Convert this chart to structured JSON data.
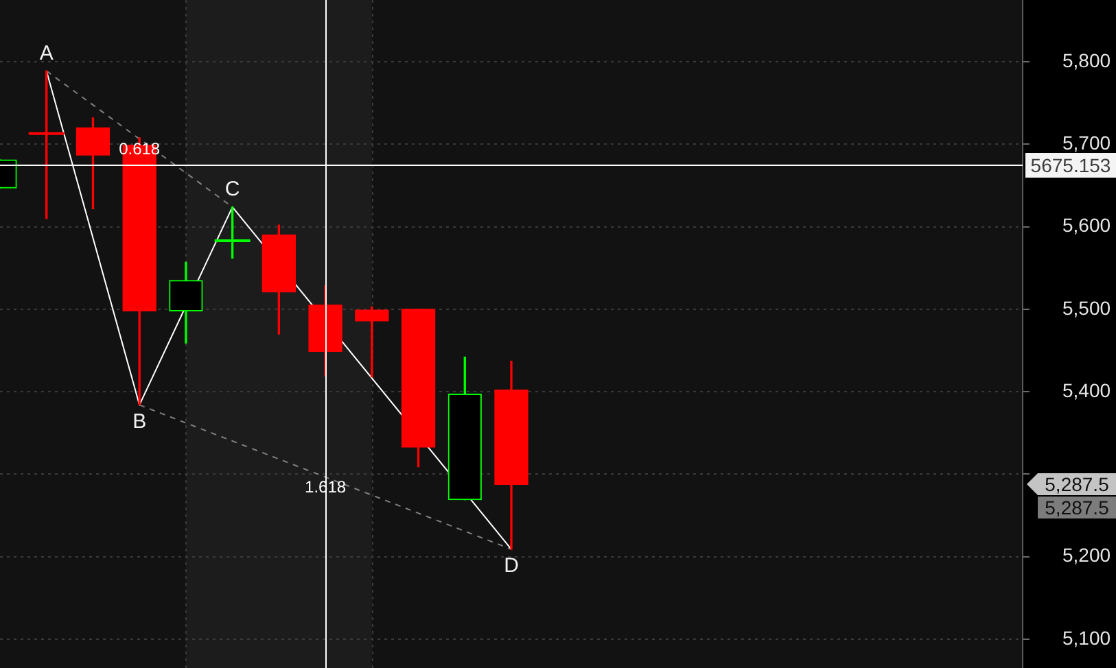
{
  "chart_data": {
    "type": "candlestick",
    "categories": [
      null,
      null,
      null,
      null,
      null,
      null,
      null,
      null,
      null,
      null,
      null,
      null,
      null,
      null,
      null,
      null,
      null,
      null,
      null,
      null,
      null,
      null,
      null
    ],
    "ohlc": [
      [
        5647,
        5681,
        5647,
        5681
      ],
      [
        5713,
        5789,
        5610,
        5713
      ],
      [
        5720,
        5732,
        5622,
        5687
      ],
      [
        5699,
        5708,
        5384,
        5498
      ],
      [
        5498,
        5557,
        5459,
        5535
      ],
      [
        5583,
        5624,
        5562,
        5583
      ],
      [
        5590,
        5602,
        5470,
        5521
      ],
      [
        5505,
        5529,
        5419,
        5449
      ],
      [
        5499,
        5503,
        5418,
        5486
      ],
      [
        5500,
        5500,
        5309,
        5333
      ],
      [
        5269,
        5442,
        5269,
        5397
      ],
      [
        5402,
        5437,
        5209,
        5287.5
      ],
      null,
      null,
      null,
      null,
      null,
      null,
      null,
      null,
      null,
      null,
      null
    ],
    "colors": [
      "#00ff00",
      "#ff0000",
      "#ff0000",
      "#ff0000",
      "#00ff00",
      "#00ff00",
      "#ff0000",
      "#ff0000",
      "#ff0000",
      "#ff0000",
      "#00ff00",
      "#ff0000",
      null,
      null,
      null,
      null,
      null,
      null,
      null,
      null,
      null,
      null,
      null
    ],
    "series": [
      {
        "type": "line",
        "color": "#ffffff",
        "values": [
          null,
          5789,
          null,
          5384,
          null,
          5624,
          null,
          null,
          null,
          null,
          null,
          5209,
          null,
          null,
          null,
          null,
          null,
          null,
          null,
          null,
          null,
          null,
          null
        ],
        "value_labels": [
          null,
          "A",
          null,
          "B",
          null,
          "C",
          null,
          null,
          null,
          null,
          null,
          "D",
          null,
          null,
          null,
          null,
          null,
          null,
          null,
          null,
          null,
          null,
          null
        ]
      },
      {
        "type": "line",
        "name": "0.618",
        "color": "#808080",
        "line_style": "dashed",
        "values": [
          null,
          5789,
          null,
          null,
          null,
          5624,
          null,
          null,
          null,
          null,
          null,
          null,
          null,
          null,
          null,
          null,
          null,
          null,
          null,
          null,
          null,
          null,
          null
        ]
      },
      {
        "type": "line",
        "name": "1.618",
        "color": "#808080",
        "line_style": "dashed",
        "values": [
          null,
          null,
          null,
          5384,
          null,
          null,
          null,
          null,
          null,
          null,
          null,
          5209,
          null,
          null,
          null,
          null,
          null,
          null,
          null,
          null,
          null,
          null,
          null
        ]
      }
    ],
    "ylim": [
      5065,
      5875
    ],
    "yticks": [
      {
        "value": 5100,
        "label": "5,100"
      },
      {
        "value": 5200,
        "label": "5,200"
      },
      {
        "value": 5300,
        "label": null
      },
      {
        "value": 5400,
        "label": "5,400"
      },
      {
        "value": 5500,
        "label": "5,500"
      },
      {
        "value": 5600,
        "label": "5,600"
      },
      {
        "value": 5700,
        "label": "5,700"
      },
      {
        "value": 5800,
        "label": "5,800"
      }
    ],
    "ref_lines": [
      {
        "axis": "y",
        "value": 5675.153,
        "label": "5675.153",
        "color": "#ffffff"
      }
    ],
    "annotations": [
      "5,287.5",
      "5,287.5"
    ],
    "grid": "y",
    "legend": false,
    "tick_labels": "y",
    "marker": "none"
  }
}
